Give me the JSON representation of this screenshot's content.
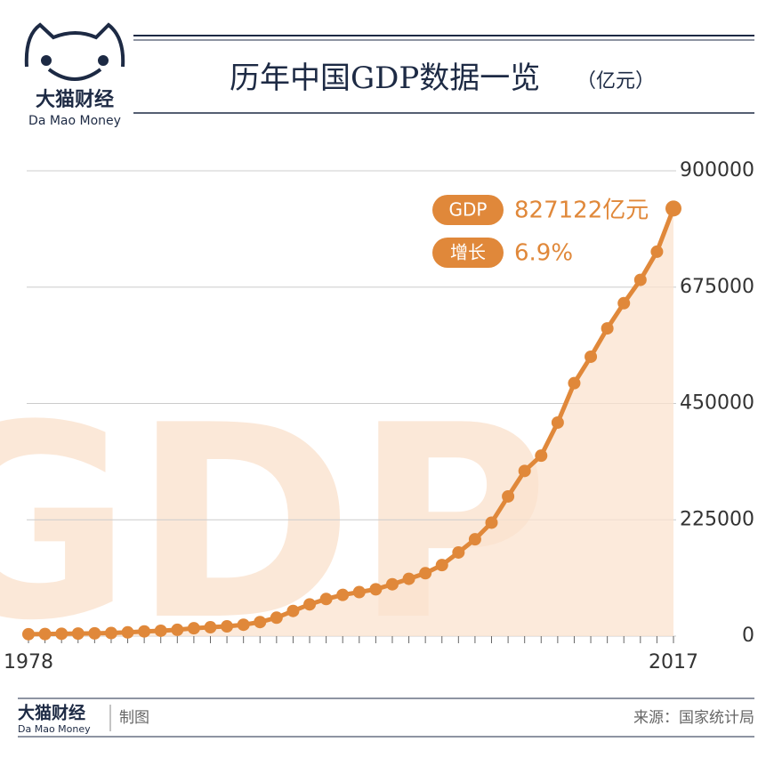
{
  "header": {
    "logo_cn": "大猫财经",
    "logo_en": "Da Mao Money"
  },
  "chart_data": {
    "type": "line",
    "title": "历年中国GDP数据一览",
    "unit": "（亿元）",
    "watermark": "GDP",
    "categories": [
      "1978",
      null,
      null,
      null,
      null,
      null,
      null,
      null,
      null,
      null,
      null,
      null,
      null,
      null,
      null,
      null,
      null,
      null,
      null,
      null,
      null,
      null,
      null,
      null,
      null,
      null,
      null,
      null,
      null,
      null,
      null,
      null,
      null,
      null,
      null,
      null,
      null,
      null,
      null,
      "2017"
    ],
    "series": [
      {
        "name": "GDP",
        "color": "#e0883a",
        "values": [
          3679,
          4101,
          4588,
          4936,
          5373,
          6021,
          7279,
          9099,
          10376,
          12175,
          15180,
          17180,
          18873,
          22006,
          27195,
          35673,
          48638,
          61340,
          71814,
          79715,
          85196,
          90564,
          100280,
          110863,
          121717,
          137422,
          161840,
          187319,
          219439,
          270232,
          319516,
          349081,
          413030,
          489301,
          540367,
          595244,
          643974,
          689052,
          743586,
          827122
        ]
      }
    ],
    "ylim": [
      0,
      900000
    ],
    "yticks": [
      0,
      225000,
      450000,
      675000,
      900000
    ],
    "grid": true,
    "area_color": "#fbe3cf",
    "annotations": [
      {
        "tag": "GDP",
        "text": "827122亿元"
      },
      {
        "tag": "增长",
        "text": "6.9%"
      }
    ]
  },
  "footer": {
    "logo_cn": "大猫财经",
    "logo_en": "Da Mao Money",
    "made": "制图",
    "source": "来源：国家统计局"
  }
}
